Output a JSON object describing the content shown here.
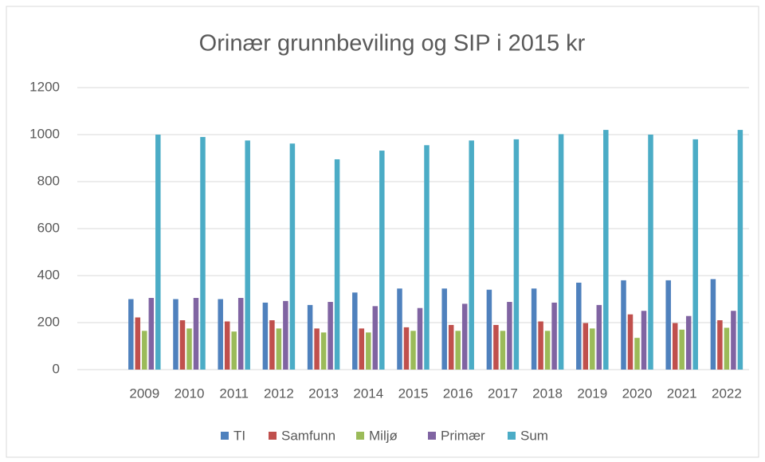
{
  "chart_data": {
    "type": "bar",
    "title": "Orinær grunnbeviling og SIP i 2015 kr",
    "categories": [
      null,
      "2009",
      "2010",
      "2011",
      "2012",
      "2013",
      "2014",
      "2015",
      "2016",
      "2017",
      "2018",
      "2019",
      "2020",
      "2021",
      "2022"
    ],
    "series": [
      {
        "name": "TI",
        "color": "#4f81bd",
        "values": [
          null,
          300,
          300,
          300,
          285,
          275,
          328,
          345,
          345,
          340,
          345,
          370,
          380,
          380,
          385
        ]
      },
      {
        "name": "Samfunn",
        "color": "#c0504d",
        "values": [
          null,
          222,
          210,
          205,
          210,
          175,
          175,
          180,
          190,
          190,
          205,
          198,
          235,
          198,
          210
        ]
      },
      {
        "name": "Miljø",
        "color": "#9bbb59",
        "values": [
          null,
          165,
          175,
          162,
          175,
          158,
          158,
          165,
          165,
          165,
          165,
          175,
          135,
          170,
          178
        ]
      },
      {
        "name": "Primær",
        "color": "#8064a2",
        "values": [
          null,
          305,
          305,
          305,
          292,
          288,
          270,
          262,
          280,
          288,
          285,
          275,
          250,
          228,
          250
        ]
      },
      {
        "name": "Sum",
        "color": "#4bacc6",
        "values": [
          null,
          1000,
          990,
          975,
          962,
          895,
          932,
          955,
          975,
          980,
          1002,
          1020,
          1000,
          980,
          1020
        ]
      }
    ],
    "ylim": [
      0,
      1200
    ],
    "yticks": [
      0,
      200,
      400,
      600,
      800,
      1000,
      1200
    ],
    "grid": true,
    "legend": "bottom"
  }
}
